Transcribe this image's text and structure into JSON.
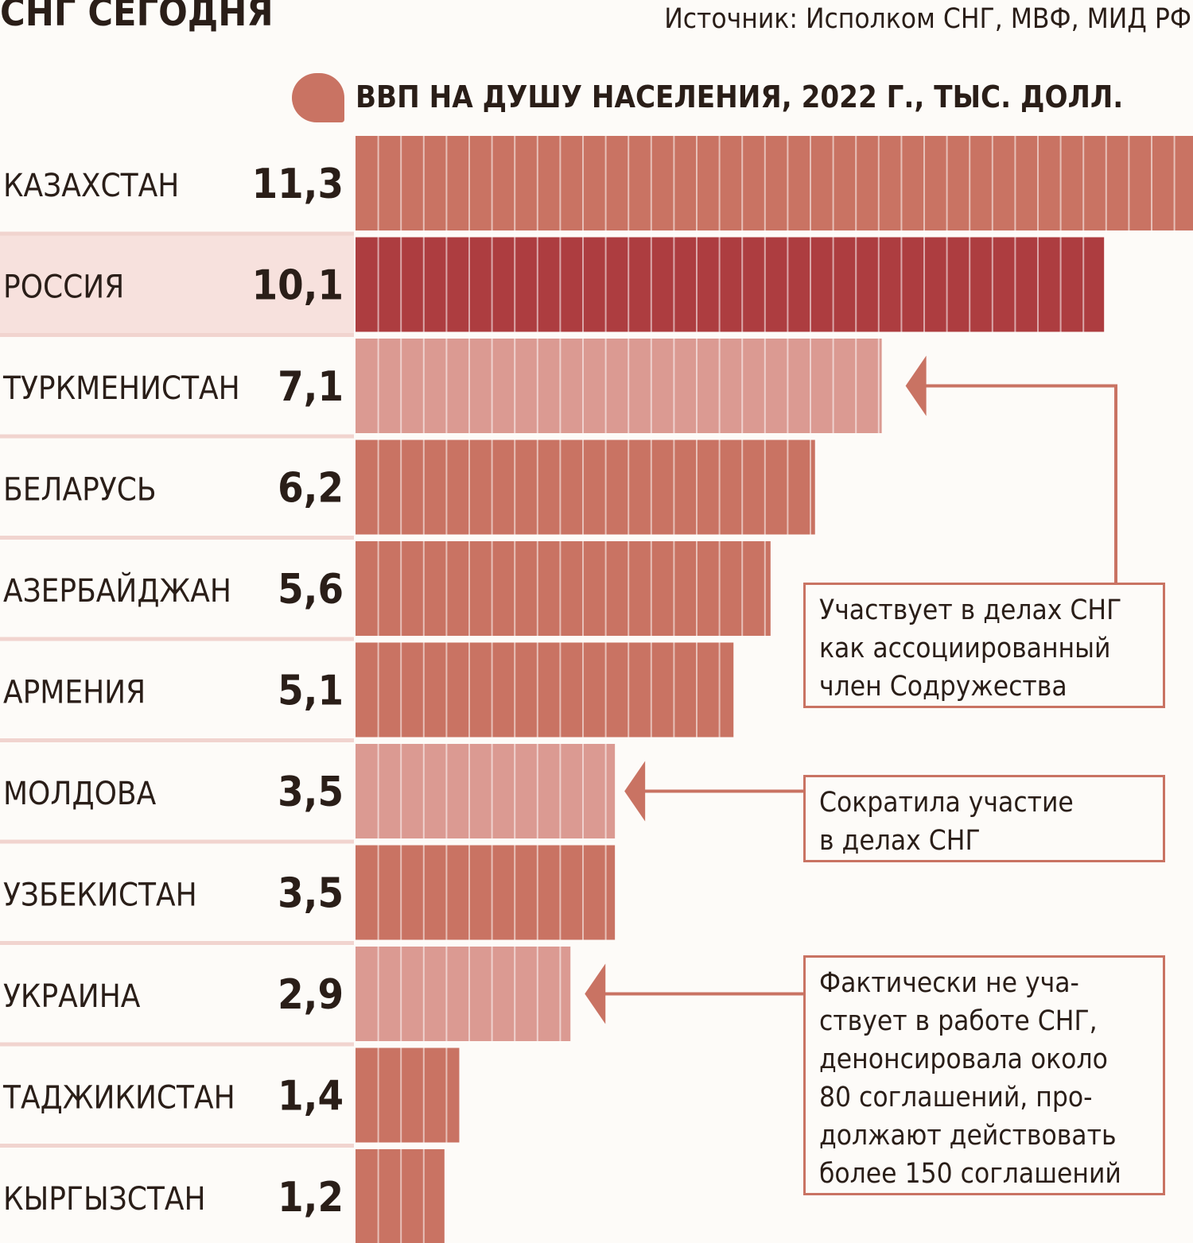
{
  "header": {
    "title": "СНГ СЕГОДНЯ",
    "source": "Источник: Исполком СНГ, МВФ, МИД РФ"
  },
  "chart_data": {
    "type": "bar",
    "orientation": "horizontal",
    "title": "ВВП НА ДУШУ НАСЕЛЕНИЯ, 2022 Г., ТЫС. ДОЛЛ.",
    "categories": [
      "КАЗАХСТАН",
      "РОССИЯ",
      "ТУРКМЕНИСТАН",
      "БЕЛАРУСЬ",
      "АЗЕРБАЙДЖАН",
      "АРМЕНИЯ",
      "МОЛДОВА",
      "УЗБЕКИСТАН",
      "УКРАИНА",
      "ТАДЖИКИСТАН",
      "КЫРГЫЗСТАН"
    ],
    "values": [
      11.3,
      10.1,
      7.1,
      6.2,
      5.6,
      5.1,
      3.5,
      3.5,
      2.9,
      1.4,
      1.2
    ],
    "value_labels": [
      "11,3",
      "10,1",
      "7,1",
      "6,2",
      "5,6",
      "5,1",
      "3,5",
      "3,5",
      "2,9",
      "1,4",
      "1,2"
    ],
    "bar_status": [
      "member",
      "highlight",
      "associate",
      "member",
      "member",
      "member",
      "reduced",
      "member",
      "inactive",
      "member",
      "member"
    ],
    "highlight_category": "РОССИЯ",
    "colors": {
      "member": "#c97363",
      "highlight": "#ad3d40",
      "associate": "#db9a92",
      "reduced": "#db9a92",
      "inactive": "#db9a92",
      "highlight_row_bg": "#f7e1dd",
      "separator": "#f1d4cf",
      "callout": "#c97363"
    },
    "annotations": [
      {
        "target": "ТУРКМЕНИСТАН",
        "lines": [
          "Участвует в делах СНГ",
          "как ассоциированный",
          "член Содружества"
        ]
      },
      {
        "target": "МОЛДОВА",
        "lines": [
          "Сократила участие",
          "в делах СНГ"
        ]
      },
      {
        "target": "УКРАИНА",
        "lines": [
          "Фактически не уча-",
          "ствует в работе СНГ,",
          "денонсировала около",
          "80 соглашений, про-",
          "должают действовать",
          "более 150 соглашений"
        ]
      }
    ]
  }
}
